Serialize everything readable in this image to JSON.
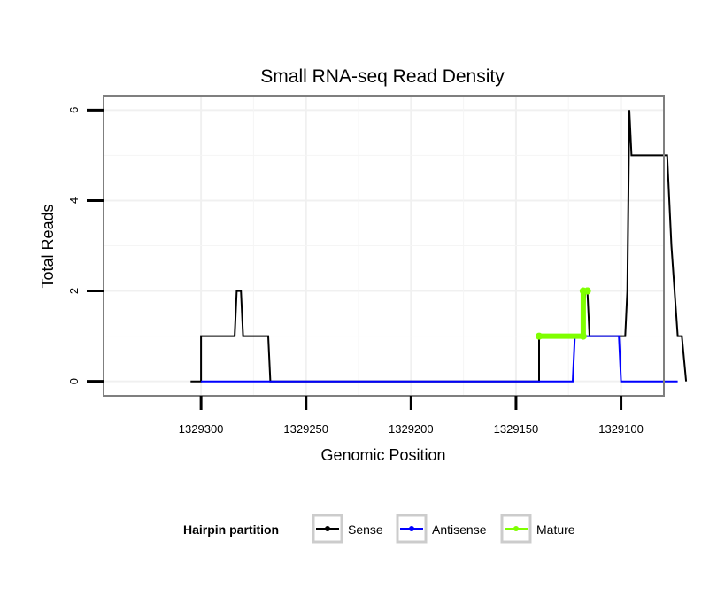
{
  "chart_data": {
    "type": "line",
    "title": "Small RNA-seq Read Density",
    "xlabel": "Genomic Position",
    "ylabel": "Total Reads",
    "x_reversed": true,
    "xlim": [
      1329346,
      1329080
    ],
    "ylim": [
      -0.3,
      6.3
    ],
    "x_ticks": [
      1329300,
      1329250,
      1329200,
      1329150,
      1329100
    ],
    "x_tick_labels": [
      "1329300",
      "1329250",
      "1329200",
      "1329150",
      "1329100"
    ],
    "y_ticks": [
      0,
      2,
      4,
      6
    ],
    "y_tick_labels": [
      "0",
      "2",
      "4",
      "6"
    ],
    "grid": true,
    "legend": {
      "title": "Hairpin partition",
      "position": "bottom",
      "entries": [
        {
          "label": "Sense",
          "color": "#000000"
        },
        {
          "label": "Antisense",
          "color": "#0000ff"
        },
        {
          "label": "Mature",
          "color": "#7fff00"
        }
      ]
    },
    "series": [
      {
        "name": "Sense",
        "color": "#000000",
        "x": [
          1329305,
          1329300,
          1329300,
          1329284,
          1329283,
          1329281,
          1329280,
          1329268,
          1329267,
          1329139,
          1329139,
          1329118,
          1329117,
          1329116,
          1329115,
          1329098,
          1329097,
          1329096,
          1329095,
          1329078,
          1329076,
          1329073,
          1329071,
          1329069
        ],
        "values": [
          0,
          0,
          1,
          1,
          2,
          2,
          1,
          1,
          0,
          0,
          1,
          1,
          2,
          2,
          1,
          1,
          2,
          6,
          5,
          5,
          3,
          1,
          1,
          0
        ]
      },
      {
        "name": "Antisense",
        "color": "#0000ff",
        "x": [
          1329300,
          1329268,
          1329139,
          1329123,
          1329122,
          1329101,
          1329100,
          1329073
        ],
        "values": [
          0,
          0,
          0,
          0,
          1,
          1,
          0,
          0
        ]
      },
      {
        "name": "Mature",
        "color": "#7fff00",
        "x": [
          1329139,
          1329118,
          1329118,
          1329116,
          1329116
        ],
        "values": [
          1,
          1,
          2,
          2,
          2
        ]
      }
    ]
  }
}
